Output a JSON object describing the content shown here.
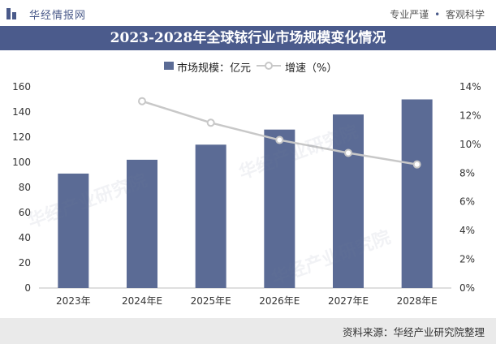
{
  "header": {
    "brand": "华经情报网",
    "slogan_left": "专业严谨",
    "slogan_sep": "•",
    "slogan_right": "客观科学"
  },
  "watermark_text": "华经产业研究院",
  "footer": {
    "source": "资料来源：华经产业研究院整理"
  },
  "colors": {
    "bar": "#5b6b95",
    "line": "#c8c8c8",
    "title_bg": "#4b5b8c"
  },
  "chart_data": {
    "type": "bar",
    "title": "2023-2028年全球铱行业市场规模变化情况",
    "categories": [
      "2023年",
      "2024年E",
      "2025年E",
      "2026年E",
      "2027年E",
      "2028年E"
    ],
    "series": [
      {
        "name": "市场规模：亿元",
        "type": "bar",
        "axis": "left",
        "values": [
          91,
          102,
          114,
          126,
          138,
          150
        ]
      },
      {
        "name": "增速（%）",
        "type": "line",
        "axis": "right",
        "values": [
          null,
          13.0,
          11.5,
          10.3,
          9.4,
          8.6
        ]
      }
    ],
    "y_left": {
      "min": 0,
      "max": 160,
      "step": 20,
      "ticks": [
        "0",
        "20",
        "40",
        "60",
        "80",
        "100",
        "120",
        "140",
        "160"
      ]
    },
    "y_right": {
      "min": 0,
      "max": 14,
      "step": 2,
      "ticks": [
        "0%",
        "2%",
        "4%",
        "6%",
        "8%",
        "10%",
        "12%",
        "14%"
      ]
    },
    "legend_position": "top"
  }
}
